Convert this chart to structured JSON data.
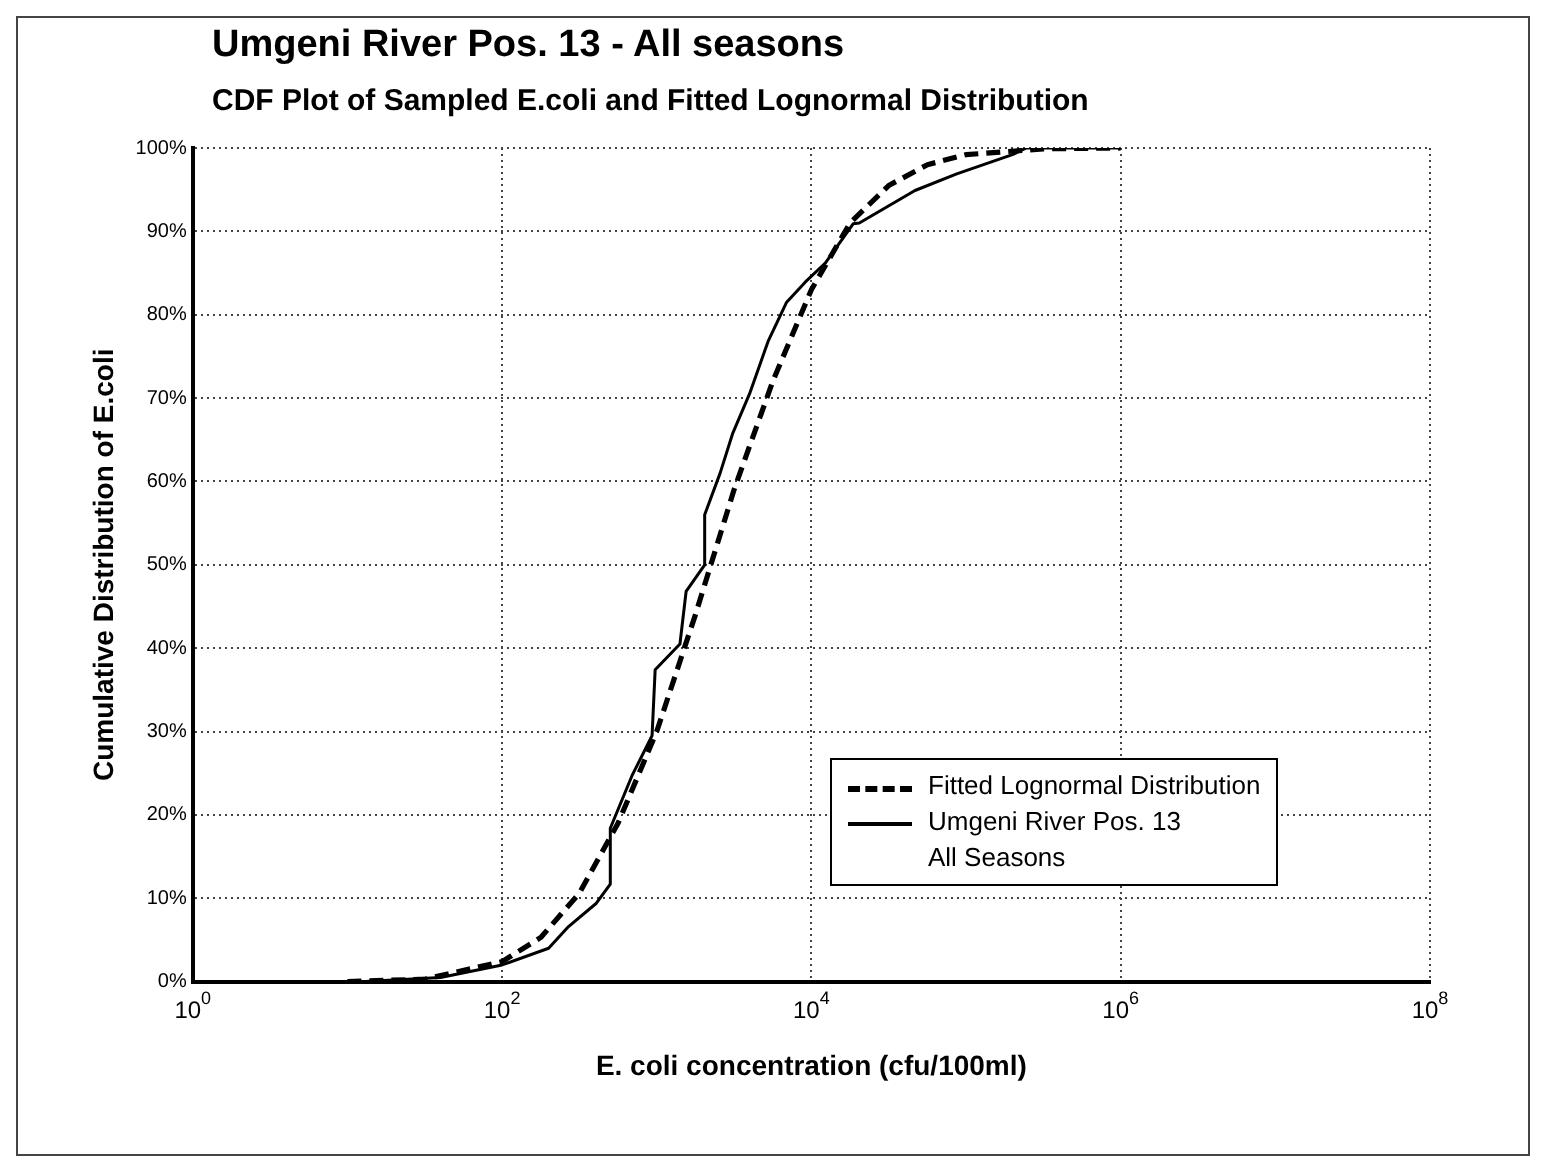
{
  "chart_data": {
    "type": "line",
    "title": "Umgeni River Pos. 13 - All seasons",
    "subtitle": "CDF Plot of Sampled E.coli and Fitted Lognormal Distribution",
    "xlabel": "E. coli concentration (cfu/100ml)",
    "ylabel": "Cumulative Distribution of E.coli",
    "log": "x",
    "grid": true,
    "legend": "bottom right",
    "marker": "none",
    "xlim": [
      1,
      100000000
    ],
    "xticks": [
      {
        "value": 1,
        "label": "10$^{0}$"
      },
      {
        "value": 100,
        "label": "10$^{2}$"
      },
      {
        "value": 10000,
        "label": "10$^{4}$"
      },
      {
        "value": 1000000,
        "label": "10$^{6}$"
      },
      {
        "value": 100000000,
        "label": "10$^{8}$"
      }
    ],
    "ylim": [
      0,
      100
    ],
    "yticks": [
      {
        "value": 0,
        "label": "0%"
      },
      {
        "value": 10,
        "label": "10%"
      },
      {
        "value": 20,
        "label": "20%"
      },
      {
        "value": 30,
        "label": "30%"
      },
      {
        "value": 40,
        "label": "40%"
      },
      {
        "value": 50,
        "label": "50%"
      },
      {
        "value": 60,
        "label": "60%"
      },
      {
        "value": 70,
        "label": "70%"
      },
      {
        "value": 80,
        "label": "80%"
      },
      {
        "value": 90,
        "label": "90%"
      },
      {
        "value": 100,
        "label": "100%"
      }
    ],
    "series": [
      {
        "name": "Fitted Lognormal Distribution",
        "color": "#000000",
        "line_style": "dashed",
        "x": [
          10,
          32,
          100,
          178,
          316,
          562,
          1000,
          1778,
          3162,
          5623,
          10000,
          17783,
          31623,
          56234,
          100000,
          316228,
          1000000
        ],
        "values": [
          0,
          0.3,
          2.4,
          5.3,
          10.6,
          19,
          30,
          44,
          59,
          72,
          83,
          91,
          95.5,
          98,
          99.2,
          99.9,
          100
        ]
      },
      {
        "name": "Umgeni River Pos. 13\nAll Seasons",
        "color": "#000000",
        "line_style": "solid",
        "x": [
          13,
          40,
          100,
          200,
          269,
          407,
          501,
          501,
          692,
          933,
          977,
          1413,
          1549,
          2042,
          2042,
          2570,
          3090,
          3981,
          5248,
          6918,
          9120,
          12303,
          18621,
          20417,
          46774,
          87096,
          199526,
          245471,
          1000000
        ],
        "values": [
          0,
          0.5,
          2,
          4,
          6.6,
          9.4,
          11.7,
          18.4,
          24.7,
          29.5,
          37.4,
          40.5,
          46.8,
          50,
          56,
          61,
          65.7,
          70.5,
          76.8,
          81.5,
          83.9,
          86.2,
          90.9,
          91,
          94.9,
          96.9,
          99.2,
          100,
          100
        ]
      }
    ]
  }
}
